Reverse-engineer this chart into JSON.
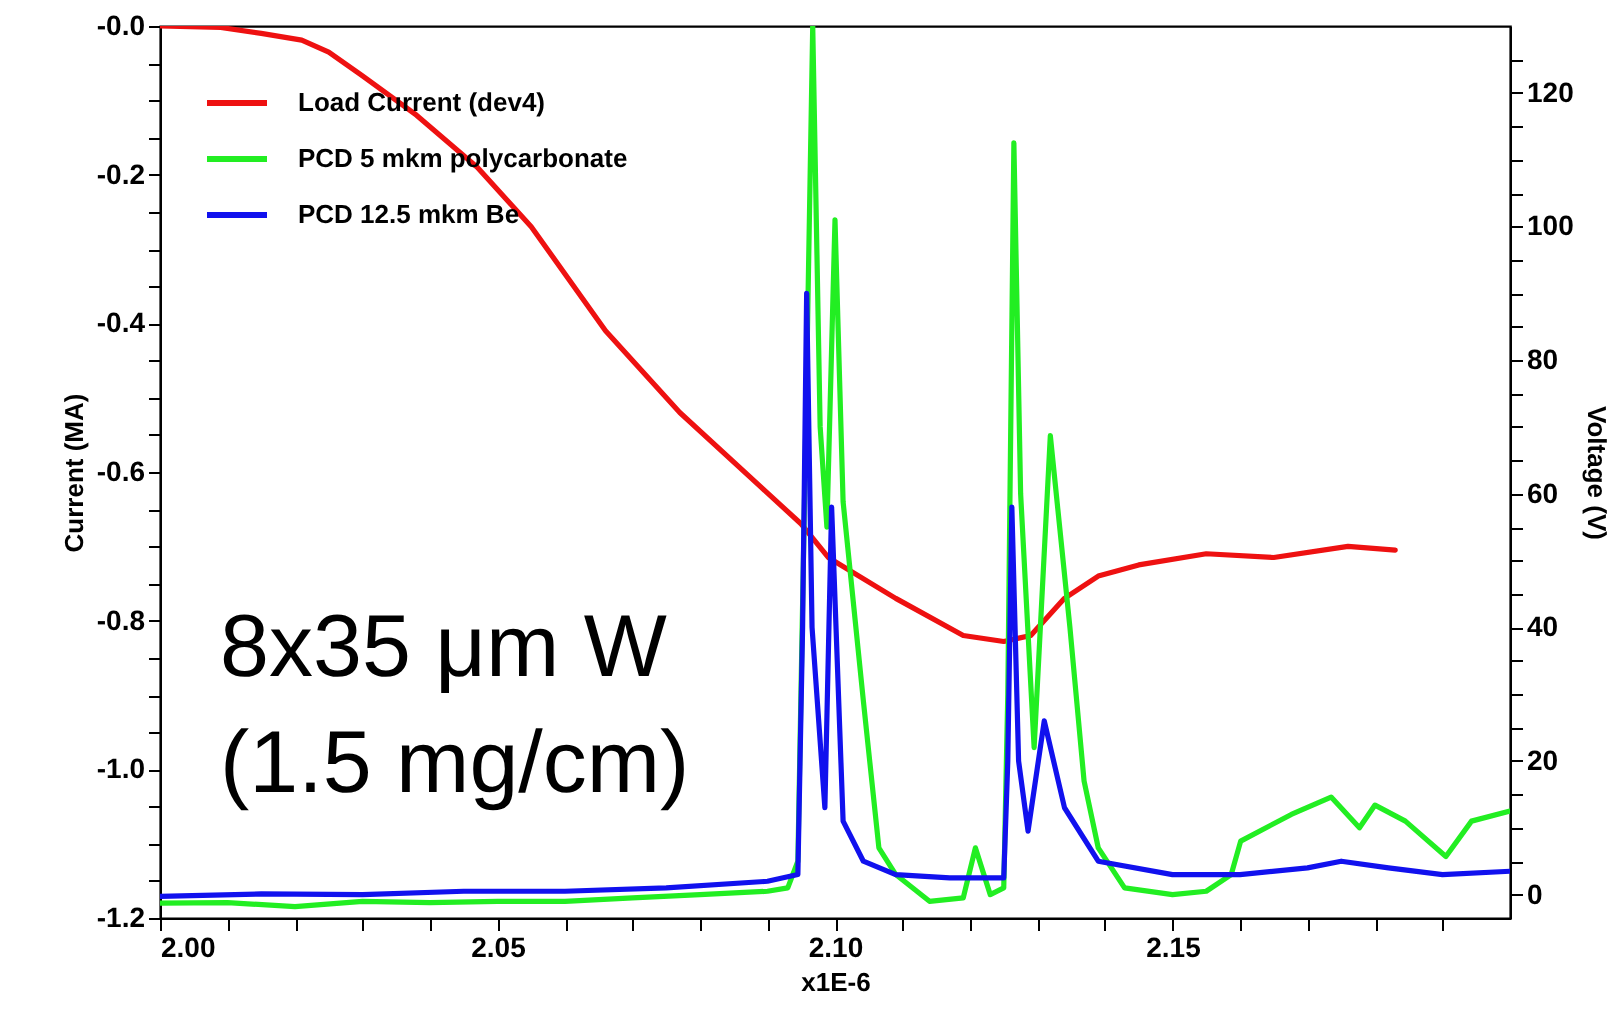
{
  "chart_data": {
    "type": "line",
    "xlabel": "x1E-6",
    "ylabel": "Current (MA)",
    "y2label": "Voltage (V)",
    "annotations": [
      "8x35 μm W",
      "(1.5 mg/cm)"
    ],
    "xlim": [
      2.0,
      2.2
    ],
    "xticks": [
      {
        "value": 2.0,
        "label": "2.00"
      },
      {
        "value": 2.01,
        "label": null
      },
      {
        "value": 2.02,
        "label": null
      },
      {
        "value": 2.03,
        "label": null
      },
      {
        "value": 2.04,
        "label": null
      },
      2.05,
      {
        "value": 2.06,
        "label": null
      },
      {
        "value": 2.07,
        "label": null
      },
      {
        "value": 2.08,
        "label": null
      },
      {
        "value": 2.09,
        "label": null
      },
      {
        "value": 2.1,
        "label": "2.10"
      },
      {
        "value": 2.11,
        "label": null
      },
      {
        "value": 2.12,
        "label": null
      },
      {
        "value": 2.13,
        "label": null
      },
      {
        "value": 2.14,
        "label": null
      },
      2.15,
      {
        "value": 2.16,
        "label": null
      },
      {
        "value": 2.17,
        "label": null
      },
      {
        "value": 2.18,
        "label": null
      },
      {
        "value": 2.19,
        "label": null
      }
    ],
    "ylim": [
      -1.2,
      0
    ],
    "yticks": [
      {
        "value": 0,
        "label": "-0.0"
      },
      {
        "value": -0.05,
        "label": null
      },
      {
        "value": -0.1,
        "label": null
      },
      {
        "value": -0.15,
        "label": null
      },
      -0.2,
      {
        "value": -0.25,
        "label": null
      },
      {
        "value": -0.3,
        "label": null
      },
      {
        "value": -0.35,
        "label": null
      },
      -0.4,
      {
        "value": -0.45,
        "label": null
      },
      {
        "value": -0.5,
        "label": null
      },
      {
        "value": -0.55,
        "label": null
      },
      -0.6,
      {
        "value": -0.65,
        "label": null
      },
      {
        "value": -0.7,
        "label": null
      },
      {
        "value": -0.75,
        "label": null
      },
      -0.8,
      {
        "value": -0.85,
        "label": null
      },
      {
        "value": -0.9,
        "label": null
      },
      {
        "value": -0.95,
        "label": null
      },
      {
        "value": -1.0,
        "label": "-1.0"
      },
      {
        "value": -1.05,
        "label": null
      },
      {
        "value": -1.1,
        "label": null
      },
      {
        "value": -1.15,
        "label": null
      },
      -1.2
    ],
    "y2lim": [
      -3.5,
      130
    ],
    "y2ticks": [
      0,
      {
        "value": 5,
        "label": null
      },
      {
        "value": 10,
        "label": null
      },
      {
        "value": 15,
        "label": null
      },
      20,
      {
        "value": 25,
        "label": null
      },
      {
        "value": 30,
        "label": null
      },
      {
        "value": 35,
        "label": null
      },
      40,
      {
        "value": 45,
        "label": null
      },
      {
        "value": 50,
        "label": null
      },
      {
        "value": 55,
        "label": null
      },
      60,
      {
        "value": 65,
        "label": null
      },
      {
        "value": 70,
        "label": null
      },
      {
        "value": 75,
        "label": null
      },
      80,
      {
        "value": 85,
        "label": null
      },
      {
        "value": 90,
        "label": null
      },
      {
        "value": 95,
        "label": null
      },
      100,
      {
        "value": 105,
        "label": null
      },
      {
        "value": 110,
        "label": null
      },
      {
        "value": 115,
        "label": null
      },
      120,
      {
        "value": 125,
        "label": null
      }
    ],
    "legend": "top left",
    "grid": false,
    "line_style": "solid",
    "series": [
      {
        "name": "Load Current (dev4)",
        "color": "#ee1111",
        "x": [
          2.0,
          2.009,
          2.015,
          2.021,
          2.025,
          2.03,
          2.038,
          2.047,
          2.055,
          2.066,
          2.077,
          2.089,
          2.095,
          2.099,
          2.109,
          2.119,
          2.125,
          2.129,
          2.134,
          2.139,
          2.145,
          2.155,
          2.165,
          2.176,
          2.183
        ],
        "values": [
          0,
          -0.002,
          -0.01,
          -0.019,
          -0.035,
          -0.067,
          -0.12,
          -0.19,
          -0.27,
          -0.41,
          -0.52,
          -0.62,
          -0.67,
          -0.715,
          -0.77,
          -0.82,
          -0.828,
          -0.82,
          -0.77,
          -0.74,
          -0.725,
          -0.71,
          -0.715,
          -0.7,
          -0.705
        ]
      },
      {
        "name": "PCD 5 mkm polycarbonate",
        "color": "#22ee22",
        "axis": "y2",
        "x": [
          2.0,
          2.01,
          2.02,
          2.03,
          2.04,
          2.05,
          2.06,
          2.07,
          2.08,
          2.09,
          2.093,
          2.0945,
          2.0955,
          2.0967,
          2.0978,
          2.0988,
          2.1,
          2.1012,
          2.1042,
          2.1065,
          2.109,
          2.114,
          2.119,
          2.1208,
          2.123,
          2.125,
          2.1256,
          2.1265,
          2.1275,
          2.1295,
          2.1319,
          2.1348,
          2.1369,
          2.139,
          2.1429,
          2.15,
          2.155,
          2.1587,
          2.1601,
          2.1676,
          2.1735,
          2.1777,
          2.18,
          2.1845,
          2.1905,
          2.1943,
          2.2
        ],
        "values": [
          -1.26,
          -1.2,
          -1.8,
          -1.0,
          -1.2,
          -1.0,
          -1.0,
          -0.5,
          0,
          0.5,
          1,
          5,
          60,
          130,
          70,
          55,
          101,
          58.8,
          29,
          7,
          3,
          -1,
          -0.5,
          7,
          0,
          1,
          30,
          112.5,
          60,
          22,
          68.7,
          40,
          17,
          7,
          1,
          0,
          0.5,
          3,
          8,
          12,
          14.6,
          10,
          13.4,
          11,
          5.7,
          11,
          12.5
        ]
      },
      {
        "name": "PCD 12.5 mkm Be",
        "color": "#1111ee",
        "axis": "y2",
        "x": [
          2.0,
          2.015,
          2.03,
          2.045,
          2.06,
          2.075,
          2.09,
          2.0945,
          2.0952,
          2.0958,
          2.0966,
          2.0985,
          2.0995,
          2.1012,
          2.1042,
          2.109,
          2.117,
          2.125,
          2.1256,
          2.1262,
          2.1272,
          2.1286,
          2.131,
          2.134,
          2.139,
          2.15,
          2.16,
          2.17,
          2.175,
          2.182,
          2.19,
          2.2
        ],
        "values": [
          -0.25,
          0.1,
          0,
          0.5,
          0.5,
          1,
          2,
          3,
          40,
          90,
          40,
          13,
          58,
          11,
          5,
          3,
          2.5,
          2.5,
          20,
          58,
          20,
          9.5,
          26,
          13,
          5,
          3,
          3,
          4,
          5,
          4,
          3,
          3.5
        ]
      }
    ]
  }
}
